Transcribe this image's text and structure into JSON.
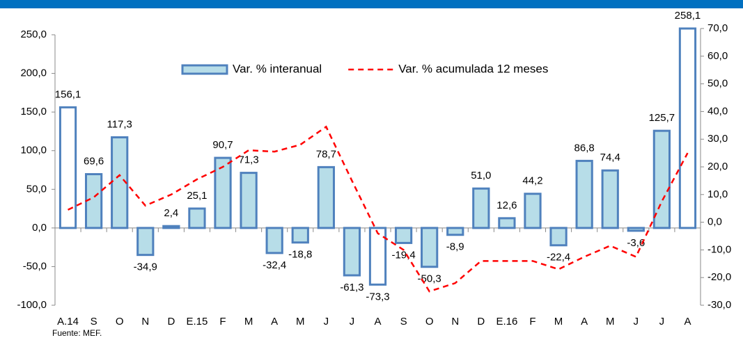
{
  "chart_data": {
    "type": "bar",
    "source": "Fuente: MEF.",
    "categories": [
      "A.14",
      "S",
      "O",
      "N",
      "D",
      "E.15",
      "F",
      "M",
      "A",
      "M",
      "J",
      "J",
      "A",
      "S",
      "O",
      "N",
      "D",
      "E.16",
      "F",
      "M",
      "A",
      "M",
      "J",
      "J",
      "A"
    ],
    "series": [
      {
        "name": "Var. % interanual",
        "type": "bar",
        "color": "#b7dde8",
        "edge_color": "#4f81bd",
        "colors": [
          "#ffffff",
          "#b7dde8",
          "#b7dde8",
          "#b7dde8",
          "#b7dde8",
          "#b7dde8",
          "#b7dde8",
          "#b7dde8",
          "#b7dde8",
          "#b7dde8",
          "#b7dde8",
          "#b7dde8",
          "#ffffff",
          "#b7dde8",
          "#b7dde8",
          "#b7dde8",
          "#b7dde8",
          "#b7dde8",
          "#b7dde8",
          "#b7dde8",
          "#b7dde8",
          "#b7dde8",
          "#b7dde8",
          "#b7dde8",
          "#ffffff"
        ],
        "values": [
          156.1,
          69.6,
          117.3,
          -34.9,
          2.4,
          25.1,
          90.7,
          71.3,
          -32.4,
          -18.8,
          78.7,
          -61.3,
          -73.3,
          -19.4,
          -50.3,
          -8.9,
          51.0,
          12.6,
          44.2,
          -22.4,
          86.8,
          74.4,
          -3.6,
          125.7,
          258.1
        ],
        "value_labels": [
          "156,1",
          "69,6",
          "117,3",
          "-34,9",
          "2,4",
          "25,1",
          "90,7",
          "71,3",
          "-32,4",
          "-18,8",
          "78,7",
          "-61,3",
          "-73,3",
          "-19,4",
          "-50,3",
          "-8,9",
          "51,0",
          "12,6",
          "44,2",
          "-22,4",
          "86,8",
          "74,4",
          "-3,6",
          "125,7",
          "258,1"
        ]
      },
      {
        "name": "Var. % acumulada 12 meses",
        "type": "line",
        "axis": "y2",
        "color": "#ff0000",
        "dashed": true,
        "values": [
          4.5,
          9,
          17,
          6,
          10,
          15.5,
          20,
          26,
          25.5,
          28,
          34.5,
          15,
          -4,
          -10,
          -25,
          -22,
          -14,
          -14,
          -14,
          -17,
          -12.5,
          -8.5,
          -12.5,
          7.5,
          25
        ]
      }
    ],
    "ylim": [
      -100,
      250
    ],
    "yticks": [
      {
        "value": -100,
        "label": "-100,0"
      },
      {
        "value": -50,
        "label": "-50,0"
      },
      {
        "value": 0,
        "label": "0,0"
      },
      {
        "value": 50,
        "label": "50,0"
      },
      {
        "value": 100,
        "label": "100,0"
      },
      {
        "value": 150,
        "label": "150,0"
      },
      {
        "value": 200,
        "label": "200,0"
      },
      {
        "value": 250,
        "label": "250,0"
      }
    ],
    "y2lim": [
      -30,
      70
    ],
    "y2ticks": [
      {
        "value": -30,
        "label": "-30,0"
      },
      {
        "value": -20,
        "label": "-20,0"
      },
      {
        "value": -10,
        "label": "-10,0"
      },
      {
        "value": 0,
        "label": "0,0"
      },
      {
        "value": 10,
        "label": "10,0"
      },
      {
        "value": 20,
        "label": "20,0"
      },
      {
        "value": 30,
        "label": "30,0"
      },
      {
        "value": 40,
        "label": "40,0"
      },
      {
        "value": 50,
        "label": "50,0"
      },
      {
        "value": 60,
        "label": "60,0"
      },
      {
        "value": 70,
        "label": "70,0"
      }
    ],
    "legend": "top"
  }
}
